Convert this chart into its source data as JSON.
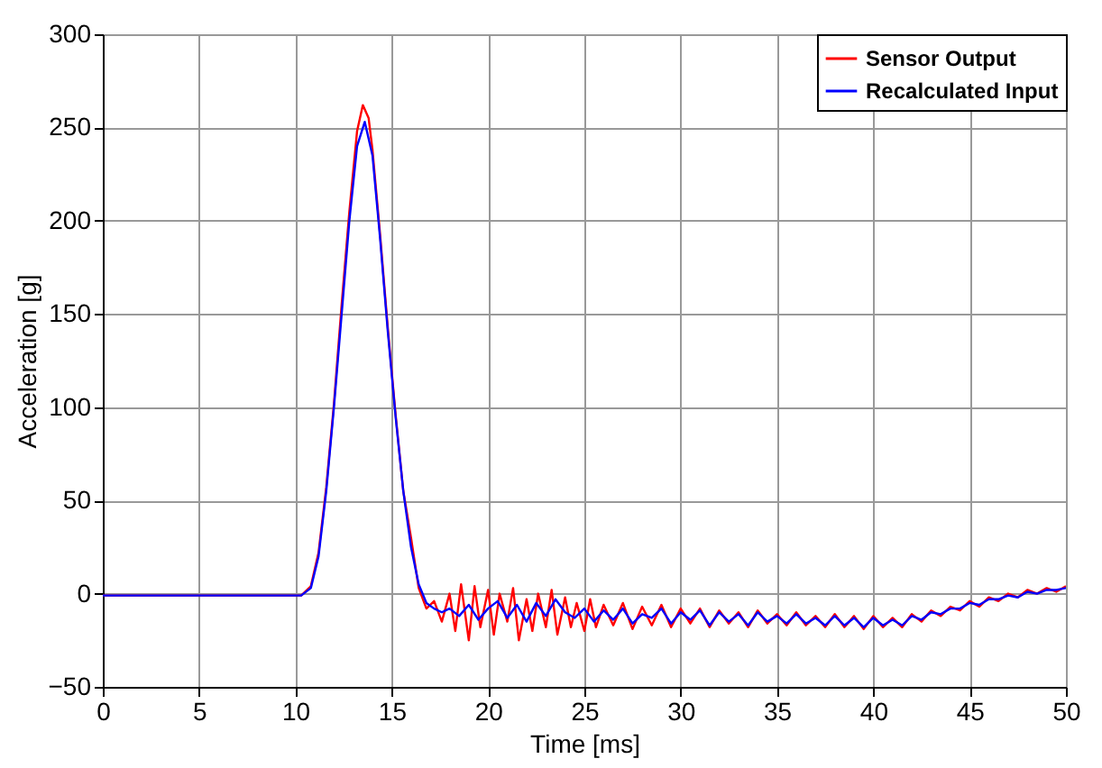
{
  "chart_data": {
    "type": "line",
    "xlabel": "Time [ms]",
    "ylabel": "Acceleration [g]",
    "xlim": [
      0,
      50
    ],
    "xticks": [
      0,
      5,
      10,
      15,
      20,
      25,
      30,
      35,
      40,
      45,
      50
    ],
    "ylim": [
      -50,
      300
    ],
    "yticks": [
      -50,
      0,
      50,
      100,
      150,
      200,
      250,
      300
    ],
    "grid": true,
    "legend": "top right",
    "marker": "none",
    "line_style": "solid",
    "series": [
      {
        "name": "Sensor Output",
        "color": "#ff0000",
        "x": [
          0,
          10.3,
          10.8,
          11.2,
          11.6,
          12,
          12.4,
          12.8,
          13.2,
          13.5,
          13.8,
          14,
          14.4,
          14.8,
          15.2,
          15.6,
          16,
          16.4,
          16.8,
          17.2,
          17.6,
          18,
          18.3,
          18.6,
          19,
          19.3,
          19.6,
          20,
          20.3,
          20.6,
          21,
          21.3,
          21.6,
          22,
          22.3,
          22.6,
          23,
          23.3,
          23.6,
          24,
          24.3,
          24.6,
          25,
          25.3,
          25.6,
          26,
          26.5,
          27,
          27.5,
          28,
          28.5,
          29,
          29.5,
          30,
          30.5,
          31,
          31.5,
          32,
          32.5,
          33,
          33.5,
          34,
          34.5,
          35,
          35.5,
          36,
          36.5,
          37,
          37.5,
          38,
          38.5,
          39,
          39.5,
          40,
          40.5,
          41,
          41.5,
          42,
          42.5,
          43,
          43.5,
          44,
          44.5,
          45,
          45.5,
          46,
          46.5,
          47,
          47.5,
          48,
          48.5,
          49,
          49.5,
          50
        ],
        "values": [
          -1,
          -1,
          4,
          22,
          57,
          102,
          155,
          205,
          248,
          262,
          255,
          238,
          192,
          142,
          96,
          55,
          30,
          3,
          -8,
          -4,
          -15,
          0,
          -20,
          5,
          -25,
          4,
          -18,
          2,
          -22,
          0,
          -15,
          3,
          -25,
          -3,
          -20,
          0,
          -18,
          2,
          -22,
          -2,
          -18,
          -5,
          -20,
          -3,
          -18,
          -6,
          -17,
          -5,
          -19,
          -7,
          -17,
          -6,
          -18,
          -8,
          -16,
          -8,
          -18,
          -9,
          -16,
          -10,
          -18,
          -9,
          -16,
          -11,
          -17,
          -10,
          -17,
          -12,
          -18,
          -11,
          -18,
          -12,
          -19,
          -12,
          -18,
          -13,
          -18,
          -11,
          -15,
          -9,
          -12,
          -7,
          -9,
          -4,
          -7,
          -2,
          -4,
          0,
          -2,
          2,
          0,
          3,
          1,
          4
        ]
      },
      {
        "name": "Recalculated Input",
        "color": "#0000ff",
        "x": [
          0,
          10.3,
          10.8,
          11.2,
          11.6,
          12,
          12.4,
          12.8,
          13.2,
          13.6,
          14,
          14.4,
          14.8,
          15.2,
          15.6,
          16,
          16.4,
          16.8,
          17.2,
          17.6,
          18,
          18.5,
          19,
          19.5,
          20,
          20.5,
          21,
          21.5,
          22,
          22.5,
          23,
          23.5,
          24,
          24.5,
          25,
          25.5,
          26,
          26.5,
          27,
          27.5,
          28,
          28.5,
          29,
          29.5,
          30,
          30.5,
          31,
          31.5,
          32,
          32.5,
          33,
          33.5,
          34,
          34.5,
          35,
          35.5,
          36,
          36.5,
          37,
          37.5,
          38,
          38.5,
          39,
          39.5,
          40,
          40.5,
          41,
          41.5,
          42,
          42.5,
          43,
          43.5,
          44,
          44.5,
          45,
          45.5,
          46,
          46.5,
          47,
          47.5,
          48,
          48.5,
          49,
          49.5,
          50
        ],
        "values": [
          -1,
          -1,
          3,
          20,
          55,
          100,
          150,
          200,
          240,
          253,
          235,
          190,
          140,
          95,
          55,
          25,
          5,
          -5,
          -8,
          -10,
          -8,
          -12,
          -6,
          -14,
          -8,
          -4,
          -13,
          -6,
          -15,
          -5,
          -12,
          -3,
          -10,
          -13,
          -8,
          -15,
          -9,
          -14,
          -8,
          -16,
          -11,
          -13,
          -8,
          -16,
          -10,
          -14,
          -9,
          -17,
          -10,
          -15,
          -11,
          -17,
          -10,
          -15,
          -12,
          -16,
          -11,
          -16,
          -13,
          -17,
          -12,
          -17,
          -13,
          -18,
          -13,
          -17,
          -14,
          -17,
          -12,
          -14,
          -10,
          -11,
          -8,
          -8,
          -5,
          -6,
          -3,
          -3,
          -1,
          -2,
          1,
          0,
          2,
          2,
          3
        ]
      }
    ]
  }
}
